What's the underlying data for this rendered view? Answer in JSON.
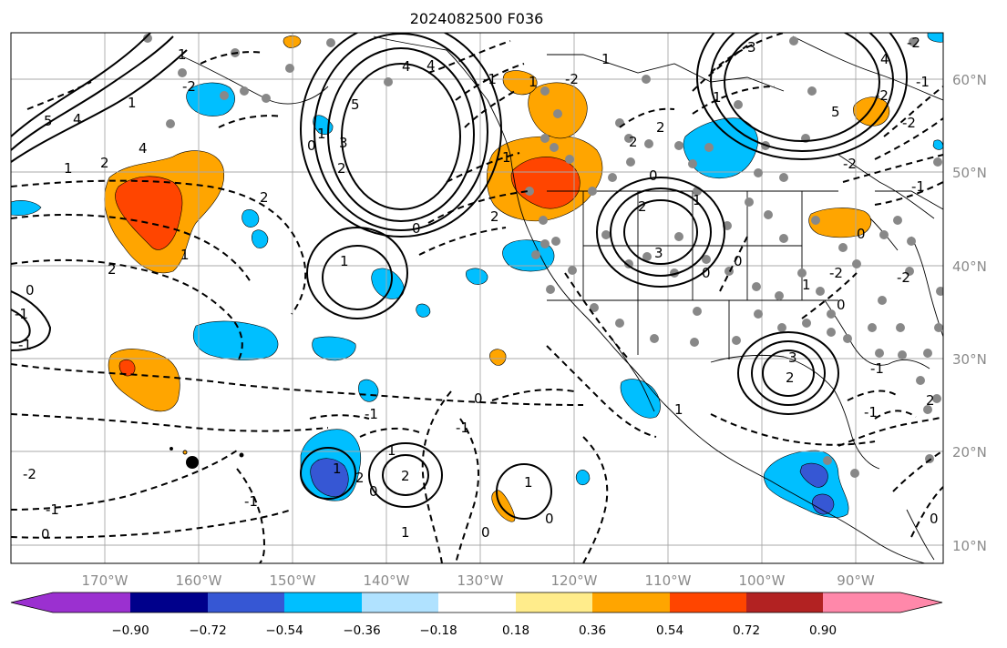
{
  "title": "2024082500 F036",
  "map": {
    "lon_labels": [
      "170°W",
      "160°W",
      "150°W",
      "140°W",
      "130°W",
      "120°W",
      "110°W",
      "100°W",
      "90°W"
    ],
    "lat_labels": [
      "60°N",
      "50°N",
      "40°N",
      "30°N",
      "20°N",
      "10°N"
    ],
    "grid": true
  },
  "colorbar": {
    "tick_labels": [
      "−0.90",
      "−0.72",
      "−0.54",
      "−0.36",
      "−0.18",
      "0.18",
      "0.36",
      "0.54",
      "0.72",
      "0.90"
    ],
    "colors": [
      "#9b30d0",
      "#00008b",
      "#3657d4",
      "#00bfff",
      "#b0e2ff",
      "#ffffff",
      "#ffec8b",
      "#ffa500",
      "#ff4500",
      "#b22222",
      "#ff88aa"
    ]
  },
  "contour_labels": [
    "5",
    "4",
    "4",
    "1",
    "2",
    "4",
    "1",
    "2",
    "2",
    "1",
    "-1",
    "0",
    "-1",
    "1",
    "0",
    "3",
    "1",
    "5",
    "4",
    "2",
    "0",
    "1",
    "2",
    "3",
    "0",
    "1",
    "3",
    "2",
    "0",
    "1",
    "5",
    "4",
    "2",
    "-2",
    "-2",
    "0",
    "-1",
    "-2",
    "-1",
    "-2",
    "0",
    "2",
    "3",
    "2",
    "1",
    "1",
    "2",
    "0",
    "-1",
    "1",
    "0",
    "-1",
    "-1",
    "-2",
    "-1",
    "1",
    "2",
    "1",
    "0",
    "0",
    "1",
    "0",
    "0",
    "1",
    "1",
    "-2",
    "1",
    "2",
    "-2",
    "-1",
    "-2",
    "-1",
    "-2",
    "-1",
    "0"
  ]
}
